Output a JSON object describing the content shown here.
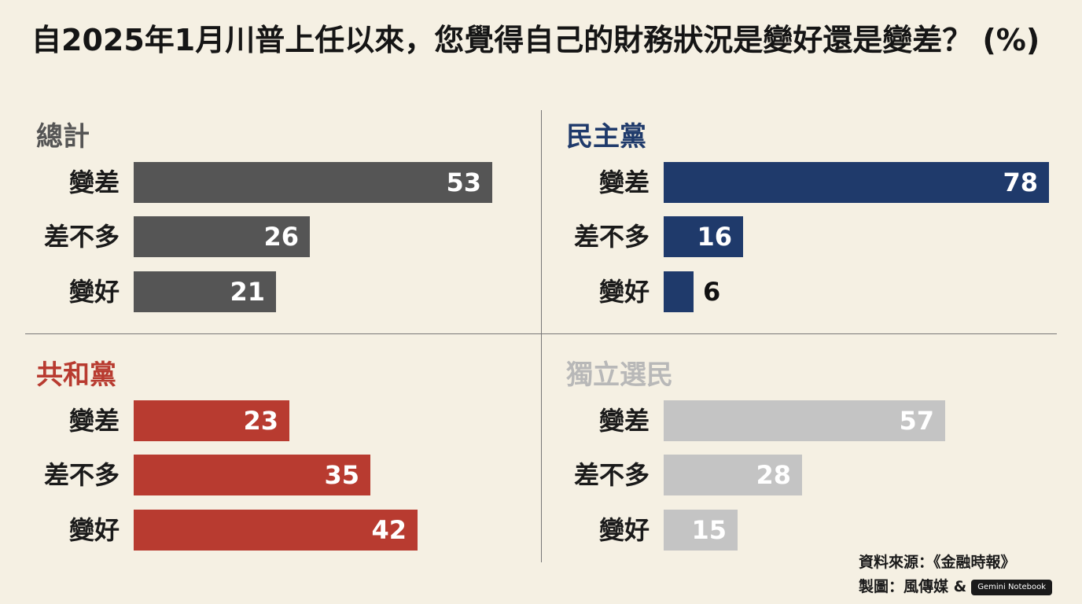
{
  "title": "自2025年1月川普上任以來，您覺得自己的財務狀況是變好還是變差？ (%)",
  "chart_data": [
    {
      "type": "bar",
      "title": "總計",
      "categories": [
        "變差",
        "差不多",
        "變好"
      ],
      "values": [
        53,
        26,
        21
      ],
      "xlim": [
        0,
        57
      ],
      "color": "#555555",
      "title_color": "#555555"
    },
    {
      "type": "bar",
      "title": "民主黨",
      "categories": [
        "變差",
        "差不多",
        "變好"
      ],
      "values": [
        78,
        16,
        6
      ],
      "xlim": [
        0,
        78
      ],
      "color": "#1f3a6b",
      "title_color": "#1f3a6b"
    },
    {
      "type": "bar",
      "title": "共和黨",
      "categories": [
        "變差",
        "差不多",
        "變好"
      ],
      "values": [
        23,
        35,
        42
      ],
      "xlim": [
        0,
        57
      ],
      "color": "#b83b30",
      "title_color": "#b83b30"
    },
    {
      "type": "bar",
      "title": "獨立選民",
      "categories": [
        "變差",
        "差不多",
        "變好"
      ],
      "values": [
        57,
        28,
        15
      ],
      "xlim": [
        0,
        78
      ],
      "color": "#c4c4c4",
      "title_color": "#b8b8b8"
    }
  ],
  "source": {
    "line1": "資料來源：《金融時報》",
    "line2": "製圖：風傳媒 &",
    "badge": "Gemini Notebook"
  }
}
